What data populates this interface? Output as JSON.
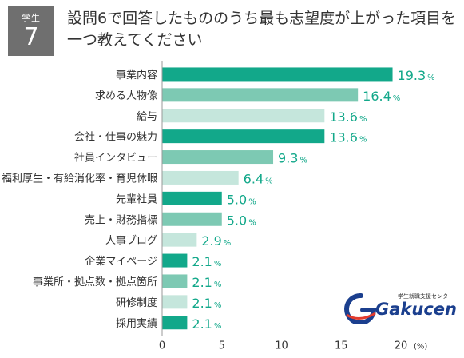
{
  "badge": {
    "label": "学生",
    "number": "7"
  },
  "colors": {
    "dark": "#12a88a",
    "medium": "#7dc9b3",
    "light": "#c5e6dc",
    "value_text": "#12a88a",
    "axis": "#999999"
  },
  "chart_data": {
    "type": "bar",
    "orientation": "horizontal",
    "title": "設問6で回答したもののうち最も志望度が上がった項目を一つ教えてください",
    "categories": [
      "事業内容",
      "求める人物像",
      "給与",
      "会社・仕事の魅力",
      "社員インタビュー",
      "福利厚生・有給消化率・育児休暇",
      "先輩社員",
      "売上・財務指標",
      "人事ブログ",
      "企業マイページ",
      "事業所・拠点数・拠点箇所",
      "研修制度",
      "採用実績"
    ],
    "values": [
      19.3,
      16.4,
      13.6,
      13.6,
      9.3,
      6.4,
      5.0,
      5.0,
      2.9,
      2.1,
      2.1,
      2.1,
      2.1
    ],
    "value_labels": [
      "19.3",
      "16.4",
      "13.6",
      "13.6",
      "9.3",
      "6.4",
      "5.0",
      "5.0",
      "2.9",
      "2.1",
      "2.1",
      "2.1",
      "2.1"
    ],
    "value_suffix": "%",
    "bar_tones": [
      "dark",
      "medium",
      "light",
      "dark",
      "medium",
      "light",
      "dark",
      "medium",
      "light",
      "dark",
      "medium",
      "light",
      "dark"
    ],
    "xlim": [
      0,
      20
    ],
    "x_ticks": [
      0,
      5,
      10,
      15,
      20
    ],
    "x_unit": "(%)",
    "grid": false
  },
  "logo": {
    "brand": "Gakucen",
    "tagline": "学生就職支援センター"
  }
}
